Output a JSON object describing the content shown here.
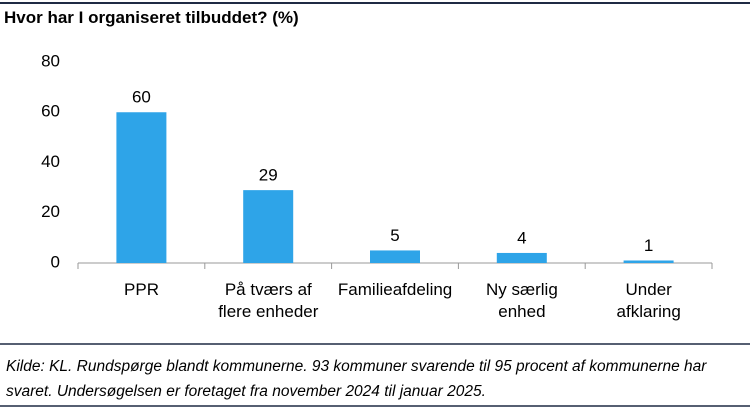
{
  "chart_data": {
    "type": "bar",
    "title": "Hvor har I organiseret tilbuddet? (%)",
    "categories": [
      "PPR",
      "På tværs af\nflere enheder",
      "Familieafdeling",
      "Ny særlig\nenhed",
      "Under\nafklaring"
    ],
    "values": [
      60,
      29,
      5,
      4,
      1
    ],
    "color": "#2ea4e8",
    "ylim": [
      0,
      80
    ],
    "yticks": [
      0,
      20,
      40,
      60,
      80
    ],
    "grid": false,
    "note": "Kilde: KL. Rundspørge blandt kommunerne. 93 kommuner svarende til 95 procent af kommunerne har svaret. Undersøgelsen er foretaget fra november 2024 til januar 2025."
  }
}
